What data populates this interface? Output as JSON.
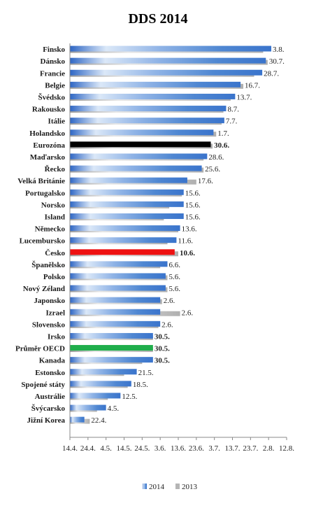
{
  "chart_data": {
    "type": "bar",
    "orientation": "horizontal",
    "title": "DDS 2014",
    "categories": [
      "Finsko",
      "Dánsko",
      "Francie",
      "Belgie",
      "Švédsko",
      "Rakousko",
      "Itálie",
      "Holandsko",
      "Eurozóna",
      "Maďarsko",
      "Řecko",
      "Velká Británie",
      "Portugalsko",
      "Norsko",
      "Island",
      "Německo",
      "Lucembursko",
      "Česko",
      "Španělsko",
      "Polsko",
      "Nový Zéland",
      "Japonsko",
      "Izrael",
      "Slovensko",
      "Irsko",
      "Průměr OECD",
      "Kanada",
      "Estonsko",
      "Spojené státy",
      "Austrálie",
      "Švýcarsko",
      "Jižní Korea"
    ],
    "data_labels": [
      "3.8.",
      "30.7.",
      "28.7.",
      "16.7.",
      "13.7.",
      "8.7.",
      "7.7.",
      "1.7.",
      "30.6.",
      "28.6.",
      "25.6.",
      "17.6.",
      "15.6.",
      "15.6.",
      "15.6.",
      "13.6.",
      "11.6.",
      "10.6.",
      "6.6.",
      "5.6.",
      "5.6.",
      "2.6.",
      "2.6.",
      "2.6.",
      "30.5.",
      "30.5.",
      "30.5.",
      "21.5.",
      "18.5.",
      "12.5.",
      "4.5.",
      "22.4."
    ],
    "x_ticks": [
      "14.4.",
      "24.4.",
      "4.5.",
      "14.5.",
      "24.5.",
      "3.6.",
      "13.6.",
      "23.6.",
      "3.7.",
      "13.7.",
      "23.7.",
      "2.8.",
      "12.8."
    ],
    "xlim": [
      0,
      120
    ],
    "series": [
      {
        "name": "2014",
        "values": [
          111.5,
          108.5,
          106.5,
          94.5,
          91.5,
          86.5,
          85.5,
          79.5,
          78,
          76,
          73,
          65,
          63,
          63,
          63,
          61,
          59,
          58,
          54,
          53,
          53,
          50,
          50,
          50,
          46,
          46,
          46,
          37,
          34,
          28,
          20,
          8
        ]
      },
      {
        "name": "2013",
        "values": [
          107,
          109.5,
          102,
          96,
          89,
          85,
          84,
          81,
          79,
          74,
          74,
          70,
          62,
          55,
          52,
          60,
          54,
          60,
          50,
          54,
          54,
          51,
          61,
          49,
          46,
          46,
          40,
          30,
          32,
          21,
          15,
          11
        ]
      }
    ],
    "highlight_colors": {
      "Eurozóna": "#000000",
      "Česko": "#ee1111",
      "Průměr OECD": "#1fae4b"
    },
    "highlight_label_colors": {
      "Česko": "#ee1111",
      "Kanada": "#6b6a2a",
      "Irsko": "#6b6a2a"
    },
    "series_colors": {
      "2014": "#4f87d2",
      "2013": "#b5b5b5"
    },
    "legend_placement": "bottom",
    "grid": false
  }
}
